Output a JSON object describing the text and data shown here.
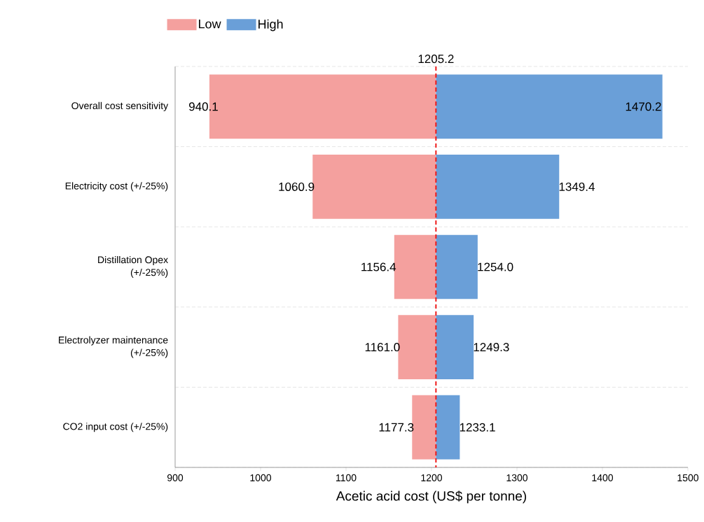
{
  "chart_data": {
    "type": "bar",
    "orientation": "horizontal",
    "xlabel": "Acetic acid cost (US$ per tonne)",
    "categories": [
      "Overall cost sensitivity",
      "Electricity cost (+/-25%)",
      "Distillation Opex\n(+/-25%)",
      "Electrolyzer maintenance\n(+/-25%)",
      "CO2 input cost (+/-25%)"
    ],
    "series": [
      {
        "name": "Low",
        "color": "#f4a09e",
        "base": [
          1205.2,
          1205.2,
          1205.2,
          1205.2,
          1205.2
        ],
        "values": [
          -265.1,
          -144.3,
          -48.8,
          -44.2,
          -27.9
        ],
        "value_labels": [
          "940.1",
          "1060.9",
          "1156.4",
          "1161.0",
          "1177.3"
        ]
      },
      {
        "name": "High",
        "color": "#6a9fd8",
        "base": [
          1205.2,
          1205.2,
          1205.2,
          1205.2,
          1205.2
        ],
        "values": [
          265.0,
          144.2,
          48.8,
          44.1,
          27.9
        ],
        "value_labels": [
          "1470.2",
          "1349.4",
          "1254.0",
          "1249.3",
          "1233.1"
        ]
      }
    ],
    "xlim": [
      900,
      1500
    ],
    "xticks": [
      900,
      1000,
      1100,
      1200,
      1300,
      1400,
      1500
    ],
    "ref_lines": [
      {
        "axis": "x",
        "value": 1205.2,
        "label": "1205.2",
        "color": "#ee1c1c",
        "line_style": "dashed"
      }
    ],
    "grid": "y",
    "legend": "top left"
  }
}
